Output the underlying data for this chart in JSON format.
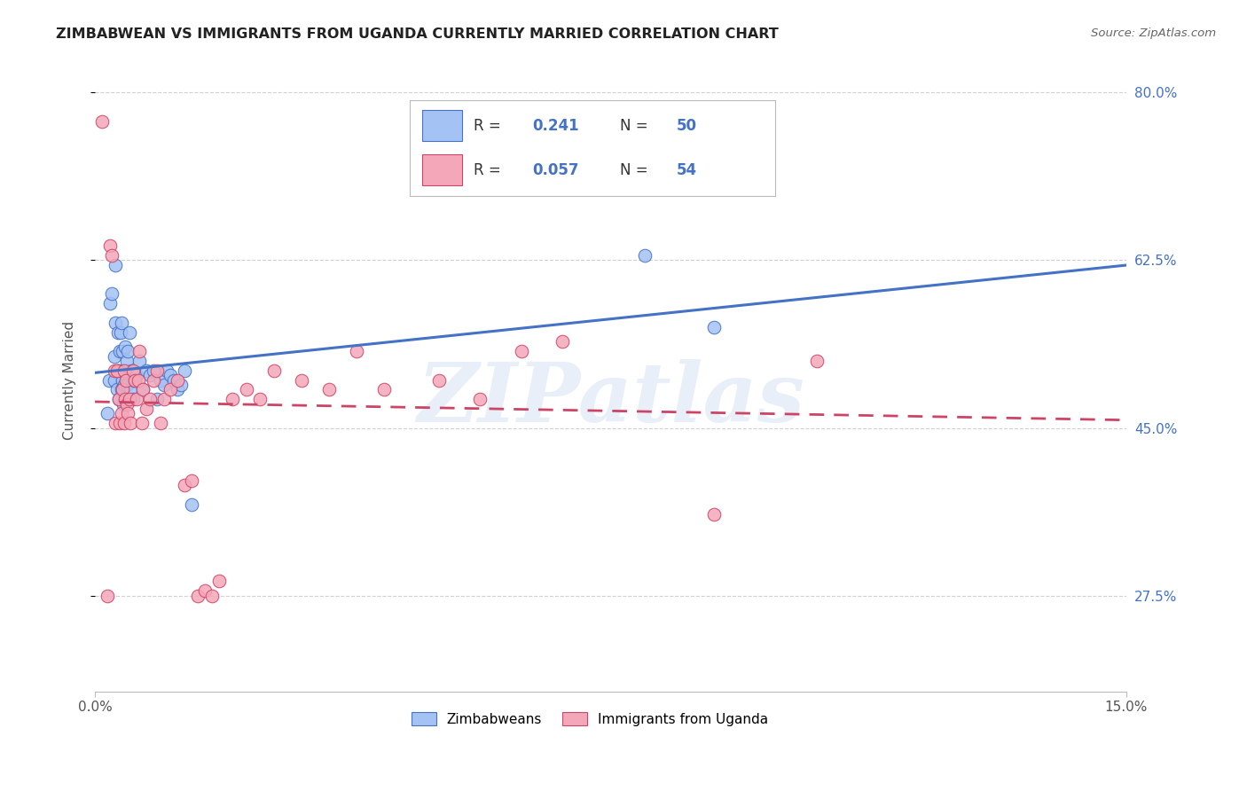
{
  "title": "ZIMBABWEAN VS IMMIGRANTS FROM UGANDA CURRENTLY MARRIED CORRELATION CHART",
  "source": "Source: ZipAtlas.com",
  "ylabel": "Currently Married",
  "xlim": [
    0.0,
    0.15
  ],
  "ylim": [
    0.175,
    0.825
  ],
  "ytick_labels_right": [
    "27.5%",
    "45.0%",
    "62.5%",
    "80.0%"
  ],
  "ytick_vals_right": [
    0.275,
    0.45,
    0.625,
    0.8
  ],
  "grid_color": "#cccccc",
  "background_color": "#ffffff",
  "blue_R": "0.241",
  "blue_N": "50",
  "pink_R": "0.057",
  "pink_N": "54",
  "blue_color": "#a4c2f4",
  "pink_color": "#f4a7b9",
  "blue_line_color": "#4472c4",
  "pink_line_color": "#cc4466",
  "legend_label_blue": "Zimbabweans",
  "legend_label_pink": "Immigrants from Uganda",
  "watermark": "ZIPatlas",
  "blue_x": [
    0.0018,
    0.002,
    0.0022,
    0.0025,
    0.0028,
    0.0028,
    0.003,
    0.003,
    0.0032,
    0.0033,
    0.0034,
    0.0035,
    0.0035,
    0.0036,
    0.0037,
    0.0038,
    0.0039,
    0.004,
    0.004,
    0.0041,
    0.0042,
    0.0043,
    0.0044,
    0.0045,
    0.0046,
    0.0047,
    0.0048,
    0.005,
    0.0052,
    0.0053,
    0.0055,
    0.0057,
    0.006,
    0.0065,
    0.007,
    0.0075,
    0.008,
    0.0085,
    0.009,
    0.0095,
    0.01,
    0.0105,
    0.011,
    0.0115,
    0.012,
    0.0125,
    0.013,
    0.014,
    0.08,
    0.09
  ],
  "blue_y": [
    0.465,
    0.5,
    0.58,
    0.59,
    0.5,
    0.525,
    0.56,
    0.62,
    0.49,
    0.51,
    0.55,
    0.48,
    0.51,
    0.53,
    0.55,
    0.49,
    0.56,
    0.5,
    0.53,
    0.475,
    0.495,
    0.51,
    0.535,
    0.505,
    0.52,
    0.495,
    0.53,
    0.55,
    0.49,
    0.51,
    0.48,
    0.5,
    0.505,
    0.52,
    0.49,
    0.51,
    0.505,
    0.51,
    0.48,
    0.5,
    0.495,
    0.51,
    0.505,
    0.5,
    0.49,
    0.495,
    0.51,
    0.37,
    0.63,
    0.555
  ],
  "pink_x": [
    0.001,
    0.0018,
    0.0022,
    0.0025,
    0.0028,
    0.003,
    0.0032,
    0.0035,
    0.0036,
    0.0038,
    0.004,
    0.0042,
    0.0043,
    0.0044,
    0.0045,
    0.0047,
    0.0048,
    0.005,
    0.0052,
    0.0055,
    0.0058,
    0.006,
    0.0063,
    0.0065,
    0.0068,
    0.007,
    0.0075,
    0.008,
    0.0085,
    0.009,
    0.0095,
    0.01,
    0.011,
    0.012,
    0.013,
    0.014,
    0.015,
    0.016,
    0.017,
    0.018,
    0.02,
    0.022,
    0.024,
    0.026,
    0.03,
    0.034,
    0.038,
    0.042,
    0.05,
    0.056,
    0.062,
    0.068,
    0.09,
    0.105
  ],
  "pink_y": [
    0.77,
    0.275,
    0.64,
    0.63,
    0.51,
    0.455,
    0.51,
    0.48,
    0.455,
    0.465,
    0.49,
    0.51,
    0.455,
    0.48,
    0.5,
    0.475,
    0.465,
    0.48,
    0.455,
    0.51,
    0.5,
    0.48,
    0.5,
    0.53,
    0.455,
    0.49,
    0.47,
    0.48,
    0.5,
    0.51,
    0.455,
    0.48,
    0.49,
    0.5,
    0.39,
    0.395,
    0.275,
    0.28,
    0.275,
    0.29,
    0.48,
    0.49,
    0.48,
    0.51,
    0.5,
    0.49,
    0.53,
    0.49,
    0.5,
    0.48,
    0.53,
    0.54,
    0.36,
    0.52
  ]
}
